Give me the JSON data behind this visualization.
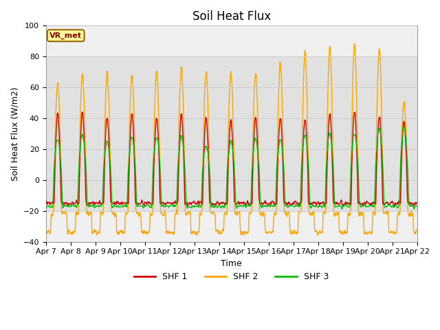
{
  "title": "Soil Heat Flux",
  "xlabel": "Time",
  "ylabel": "Soil Heat Flux (W/m2)",
  "ylim": [
    -40,
    100
  ],
  "n_days": 15,
  "pts_per_day": 144,
  "xtick_labels": [
    "Apr 7",
    "Apr 8",
    "Apr 9",
    "Apr 10",
    "Apr 11",
    "Apr 12",
    "Apr 13",
    "Apr 14",
    "Apr 15",
    "Apr 16",
    "Apr 17",
    "Apr 18",
    "Apr 19",
    "Apr 20",
    "Apr 21",
    "Apr 22"
  ],
  "shf1_color": "#cc0000",
  "shf2_color": "#ffa500",
  "shf3_color": "#00bb00",
  "shf1_amp": [
    43,
    44,
    41,
    43,
    41,
    42,
    40,
    39,
    41,
    40,
    40,
    43,
    45,
    41,
    38
  ],
  "shf2_amp": [
    63,
    69,
    69,
    68,
    70,
    73,
    70,
    70,
    69,
    76,
    83,
    86,
    88,
    85,
    50
  ],
  "shf3_amp": [
    27,
    30,
    25,
    28,
    28,
    28,
    22,
    25,
    27,
    26,
    30,
    31,
    31,
    34,
    35
  ],
  "shf1_night": -15,
  "shf2_night": -33,
  "shf3_night": -17,
  "legend_label": "VR_met",
  "legend_box_facecolor": "#ffff99",
  "legend_box_edgecolor": "#996600",
  "bg_plot": "#f0f0f0",
  "bg_fig": "#ffffff",
  "grid_color": "#cccccc",
  "title_fontsize": 12,
  "axis_label_fontsize": 9,
  "tick_fontsize": 8,
  "linewidth": 1.0
}
